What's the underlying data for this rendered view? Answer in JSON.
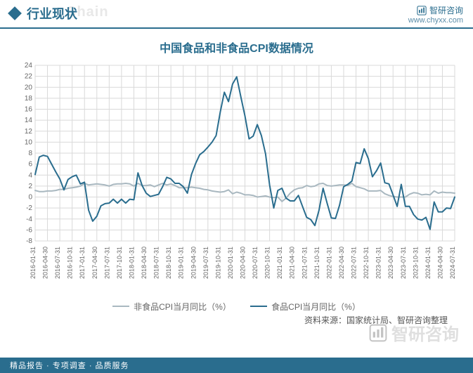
{
  "header": {
    "section_title": "行业现状",
    "ghost": "Chain",
    "brand": "智研咨询",
    "url": "www.chyxx.com"
  },
  "chart": {
    "type": "line",
    "title": "中国食品和非食品CPI数据情况",
    "background_color": "#ffffff",
    "grid_color": "#d9d9d9",
    "axis_color": "#888888",
    "text_color": "#666666",
    "title_color": "#2a6d8e",
    "title_fontsize": 16,
    "label_fontsize": 10,
    "ylim": [
      -8,
      24
    ],
    "ytick_step": 2,
    "yticks": [
      -8,
      -6,
      -4,
      -2,
      0,
      2,
      4,
      6,
      8,
      10,
      12,
      14,
      16,
      18,
      20,
      22,
      24
    ],
    "x_labels": [
      "2016-01-31",
      "2016-04-30",
      "2016-07-31",
      "2016-10-31",
      "2017-01-31",
      "2017-04-30",
      "2017-07-31",
      "2017-10-31",
      "2018-01-31",
      "2018-04-30",
      "2018-07-31",
      "2018-10-31",
      "2019-01-31",
      "2019-04-30",
      "2019-07-31",
      "2019-10-31",
      "2020-01-31",
      "2020-04-30",
      "2020-07-31",
      "2020-10-31",
      "2021-01-31",
      "2021-04-30",
      "2021-07-31",
      "2021-10-31",
      "2022-01-31",
      "2022-04-30",
      "2022-07-31",
      "2022-10-31",
      "2023-01-31",
      "2023-04-30",
      "2023-07-31",
      "2023-10-31",
      "2024-01-31",
      "2024-04-30",
      "2024-07-31"
    ],
    "series": [
      {
        "name": "非食品CPI当月同比（%）",
        "color": "#a9b8c0",
        "line_width": 2,
        "values": [
          1.2,
          1.1,
          1.4,
          1.7,
          2.5,
          2.4,
          2.0,
          2.4,
          2.0,
          2.1,
          2.2,
          2.4,
          1.7,
          1.7,
          1.3,
          0.9,
          0.6,
          0.4,
          0.0,
          0.0,
          -0.8,
          1.3,
          2.1,
          2.4,
          2.0,
          2.2,
          1.9,
          1.1,
          1.2,
          0.1,
          0.0,
          0.7,
          0.4,
          0.9,
          0.7
        ]
      },
      {
        "name": "食品CPI当月同比（%）",
        "color": "#2a6d8e",
        "line_width": 2,
        "values": [
          4.1,
          7.4,
          3.3,
          3.7,
          2.7,
          -3.5,
          -1.1,
          -0.4,
          -0.5,
          0.7,
          0.5,
          3.3,
          1.9,
          6.1,
          9.1,
          15.5,
          20.6,
          14.8,
          13.2,
          2.2,
          1.6,
          -0.7,
          -3.7,
          -2.4,
          -3.8,
          1.9,
          6.3,
          7.0,
          6.2,
          0.4,
          -1.7,
          -4.0,
          -5.9,
          -2.7,
          0.0
        ]
      }
    ],
    "food_fine": {
      "color": "#2a6d8e",
      "values": [
        4.1,
        7.3,
        7.6,
        7.4,
        6.0,
        4.6,
        3.3,
        1.3,
        3.2,
        3.7,
        4.0,
        2.4,
        2.7,
        -2.4,
        -4.4,
        -3.5,
        -1.6,
        -1.2,
        -1.1,
        -0.4,
        -1.1,
        -0.4,
        -1.1,
        -0.4,
        -0.5,
        4.4,
        2.1,
        0.7,
        0.1,
        0.3,
        0.5,
        1.9,
        3.6,
        3.3,
        2.5,
        2.5,
        1.9,
        0.7,
        4.1,
        6.1,
        7.7,
        8.3,
        9.1,
        10.0,
        11.2,
        15.5,
        19.1,
        17.4,
        20.6,
        21.9,
        18.3,
        14.8,
        10.6,
        11.1,
        13.2,
        11.2,
        7.9,
        2.2,
        -2.0,
        1.2,
        1.6,
        -0.2,
        -0.7,
        -0.7,
        0.3,
        -1.7,
        -3.7,
        -4.1,
        -5.2,
        -2.4,
        1.6,
        -1.2,
        -3.8,
        -3.9,
        -1.5,
        1.9,
        2.3,
        2.9,
        6.3,
        6.1,
        8.8,
        7.0,
        3.7,
        4.8,
        6.2,
        2.6,
        2.4,
        0.4,
        -1.7,
        2.3,
        -1.7,
        -1.7,
        -3.2,
        -4.0,
        -4.2,
        -3.7,
        -5.9,
        -0.9,
        -2.7,
        -2.7,
        -2.0,
        -2.1,
        0.0
      ]
    },
    "nonfood_fine": {
      "color": "#a9b8c0",
      "values": [
        1.2,
        1.0,
        1.0,
        1.1,
        1.1,
        1.2,
        1.4,
        1.4,
        1.6,
        1.7,
        1.8,
        2.0,
        2.5,
        2.2,
        2.3,
        2.4,
        2.3,
        2.2,
        2.0,
        2.3,
        2.4,
        2.4,
        2.5,
        2.4,
        2.0,
        2.5,
        2.1,
        2.1,
        2.2,
        1.9,
        2.2,
        2.5,
        2.2,
        2.4,
        2.1,
        1.7,
        1.7,
        1.7,
        1.8,
        1.7,
        1.6,
        1.4,
        1.3,
        1.1,
        1.0,
        0.9,
        1.0,
        1.3,
        0.6,
        0.9,
        0.7,
        0.4,
        0.4,
        0.3,
        0.0,
        0.1,
        0.2,
        0.0,
        -0.1,
        0.0,
        -0.8,
        -0.2,
        0.7,
        1.3,
        1.6,
        1.7,
        2.1,
        1.9,
        2.0,
        2.4,
        2.5,
        2.1,
        2.0,
        2.1,
        2.2,
        2.2,
        2.1,
        2.5,
        1.9,
        1.7,
        1.5,
        1.1,
        1.1,
        1.1,
        1.2,
        0.6,
        0.3,
        0.1,
        0.0,
        0.0,
        0.0,
        0.5,
        0.8,
        0.7,
        0.4,
        0.5,
        0.4,
        1.1,
        0.7,
        0.9,
        0.8,
        0.8,
        0.7
      ]
    },
    "legend_labels": {
      "nonfood": "非食品CPI当月同比（%）",
      "food": "食品CPI当月同比（%）"
    }
  },
  "source": "资料来源：国家统计局、智研咨询整理",
  "footer": "精品报告 · 专项调查 · 品质服务",
  "watermark": "智研咨询"
}
